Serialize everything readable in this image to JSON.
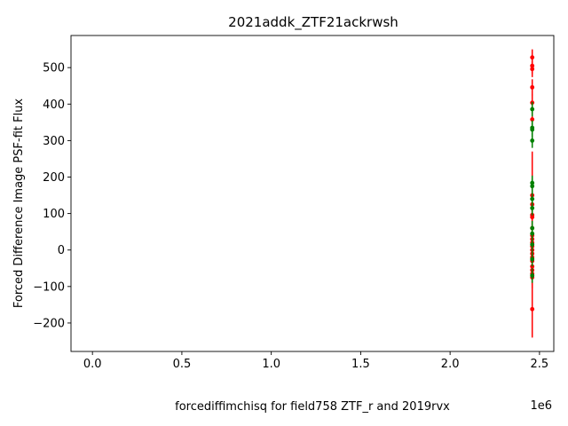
{
  "chart_data": {
    "type": "scatter",
    "title": "2021addk_ZTF21ackrwsh",
    "xlabel": "forcediffimchisq for field758 ZTF_r and 2019rvx",
    "ylabel": "Forced Difference Image PSF-fit Flux",
    "x_offset_label": "1e6",
    "xlim": [
      -120000,
      2580000
    ],
    "ylim": [
      -278,
      588
    ],
    "x_ticks": [
      0,
      500000,
      1000000,
      1500000,
      2000000,
      2500000
    ],
    "x_tick_labels": [
      "0.0",
      "0.5",
      "1.0",
      "1.5",
      "2.0",
      "2.5"
    ],
    "y_ticks": [
      -200,
      -100,
      0,
      100,
      200,
      300,
      400,
      500
    ],
    "y_tick_labels": [
      "−200",
      "−100",
      "0",
      "100",
      "200",
      "300",
      "400",
      "500"
    ],
    "grid": false,
    "series": [
      {
        "color": "#ff0000",
        "points": [
          {
            "x": 2459400,
            "y": 528,
            "err": 22
          },
          {
            "x": 2459401,
            "y": 505,
            "err": 22
          },
          {
            "x": 2459402,
            "y": 496,
            "err": 22
          },
          {
            "x": 2459403,
            "y": 446,
            "err": 22
          },
          {
            "x": 2459404,
            "y": 404,
            "err": 22
          },
          {
            "x": 2459405,
            "y": 358,
            "err": 22
          },
          {
            "x": 2459406,
            "y": 150,
            "err": 120
          },
          {
            "x": 2459407,
            "y": 125,
            "err": 30
          },
          {
            "x": 2459408,
            "y": 96,
            "err": 30
          },
          {
            "x": 2459409,
            "y": 90,
            "err": 30
          },
          {
            "x": 2459410,
            "y": 60,
            "err": 30
          },
          {
            "x": 2459411,
            "y": 40,
            "err": 30
          },
          {
            "x": 2459412,
            "y": 30,
            "err": 30
          },
          {
            "x": 2459413,
            "y": 20,
            "err": 30
          },
          {
            "x": 2459414,
            "y": 10,
            "err": 30
          },
          {
            "x": 2459415,
            "y": 0,
            "err": 30
          },
          {
            "x": 2459416,
            "y": -10,
            "err": 30
          },
          {
            "x": 2459417,
            "y": -20,
            "err": 30
          },
          {
            "x": 2459418,
            "y": -30,
            "err": 30
          },
          {
            "x": 2459419,
            "y": -45,
            "err": 30
          },
          {
            "x": 2459420,
            "y": -55,
            "err": 30
          },
          {
            "x": 2459421,
            "y": -65,
            "err": 30
          },
          {
            "x": 2459422,
            "y": -75,
            "err": 30
          },
          {
            "x": 2459423,
            "y": -162,
            "err": 78
          }
        ]
      },
      {
        "color": "#008000",
        "points": [
          {
            "x": 2459424,
            "y": 386,
            "err": 20
          },
          {
            "x": 2459425,
            "y": 335,
            "err": 20
          },
          {
            "x": 2459426,
            "y": 330,
            "err": 20
          },
          {
            "x": 2459427,
            "y": 300,
            "err": 20
          },
          {
            "x": 2459428,
            "y": 184,
            "err": 20
          },
          {
            "x": 2459429,
            "y": 175,
            "err": 20
          },
          {
            "x": 2459430,
            "y": 140,
            "err": 20
          },
          {
            "x": 2459431,
            "y": 115,
            "err": 20
          },
          {
            "x": 2459432,
            "y": 60,
            "err": 20
          },
          {
            "x": 2459433,
            "y": 45,
            "err": 20
          },
          {
            "x": 2459434,
            "y": 15,
            "err": 20
          },
          {
            "x": 2459435,
            "y": -25,
            "err": 20
          },
          {
            "x": 2459436,
            "y": -70,
            "err": 20
          }
        ]
      }
    ]
  }
}
